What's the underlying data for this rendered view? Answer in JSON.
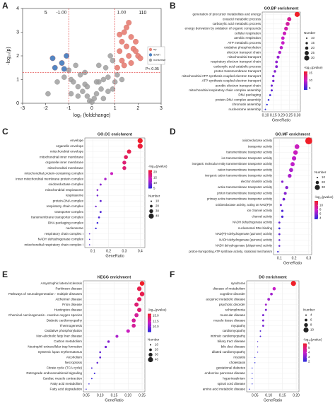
{
  "chart_data": [
    {
      "type": "volcano",
      "panel_label": "A",
      "x_label": "log₂ (foldchange)",
      "y_label": "-log₁₀(p)",
      "xlim": [
        -3,
        3
      ],
      "xticks": [
        -3,
        -2,
        -1,
        0,
        1,
        2,
        3
      ],
      "ylim": [
        0,
        4
      ],
      "yticks": [
        0,
        1,
        2,
        3,
        4
      ],
      "fc_lines": [
        {
          "value": -1,
          "label": "-1.00"
        },
        {
          "value": 1,
          "label": "1.00"
        }
      ],
      "p_line": {
        "value": 1.3,
        "label": "P< 0.05"
      },
      "counts": {
        "down": 5,
        "up": 110
      },
      "series": [
        {
          "name": "up",
          "color": "#e8847a",
          "x": [
            1.1,
            1.2,
            1.3,
            1.4,
            1.5,
            1.6,
            1.7,
            1.8,
            1.9,
            2.0,
            2.1,
            1.3,
            1.5,
            1.7,
            1.2,
            1.9,
            1.4,
            1.6
          ],
          "values": [
            1.5,
            2.2,
            2.6,
            3.0,
            2.4,
            3.4,
            2.8,
            2.3,
            2.6,
            2.0,
            1.9,
            1.8,
            3.2,
            1.7,
            2.9,
            2.2,
            1.6,
            2.0
          ]
        },
        {
          "name": "down",
          "color": "#4a7fc0",
          "x": [
            -1.7,
            -1.6,
            -1.3,
            -1.2,
            -1.1
          ],
          "values": [
            1.9,
            1.5,
            1.7,
            1.45,
            2.0
          ]
        },
        {
          "name": "nonsense",
          "color": "#a0a0a0",
          "x": [
            -1.9,
            -1.5,
            -1.2,
            -1.0,
            -0.9,
            -0.8,
            -0.7,
            -0.6,
            -0.5,
            -0.4,
            -0.3,
            -0.2,
            -0.1,
            0,
            0.1,
            0.2,
            0.3,
            0.4,
            0.5,
            0.6,
            0.7,
            0.8,
            0.9,
            1.0,
            1.1,
            1.3,
            -0.6,
            0.5,
            0.3,
            -0.3,
            0.7,
            -0.9,
            0.9,
            0.2,
            -0.2
          ],
          "values": [
            0.4,
            0.9,
            1.1,
            1.4,
            1.0,
            0.9,
            1.6,
            0.7,
            1.2,
            0.5,
            0.8,
            0.3,
            0.1,
            0.05,
            0.2,
            0.4,
            0.9,
            0.6,
            1.0,
            1.5,
            1.1,
            2.0,
            1.8,
            0.9,
            1.2,
            1.0,
            0.3,
            0.2,
            1.6,
            1.3,
            0.5,
            0.4,
            0.6,
            0.9,
            0.7
          ]
        }
      ]
    },
    {
      "type": "dot",
      "panel_label": "B",
      "title": "GO.BP enrichment",
      "x_label": "GeneRatio",
      "size_title": "Number",
      "color_title": "-log₁₀(pvalue)",
      "categories": [
        "generation of precursor metabolites and energy",
        "oxoacid metabolic process",
        "carboxylic acid metabolic process",
        "energy derivation by oxidation of organic compounds",
        "cellular respiration",
        "aerobic respiration",
        "ATP metabolic process",
        "oxidative phosphorylation",
        "electron transport chain",
        "mitochondrial transport",
        "respiratory electron transport chain",
        "carboxylic acid catabolic process",
        "proton transmembrane transport",
        "mitochondrial ATP synthesis coupled electron transport",
        "ATP synthesis coupled electron transport",
        "aerobic electron transport chain",
        "mitochondrial respiratory chain complex assembly",
        "DNA packaging",
        "protein-DNA complex assembly",
        "chromatin assembly",
        "nucleosome assembly"
      ],
      "values": [
        0.3,
        0.25,
        0.24,
        0.23,
        0.22,
        0.21,
        0.21,
        0.2,
        0.19,
        0.18,
        0.17,
        0.17,
        0.16,
        0.15,
        0.15,
        0.14,
        0.14,
        0.13,
        0.12,
        0.11,
        0.1
      ],
      "counts": [
        30,
        25,
        24,
        23,
        22,
        21,
        21,
        20,
        19,
        18,
        17,
        17,
        16,
        15,
        15,
        14,
        14,
        13,
        12,
        11,
        10
      ],
      "logp": [
        16,
        12,
        11.5,
        11,
        10.5,
        10,
        10,
        9.5,
        9,
        8,
        8,
        7.5,
        7.5,
        7,
        7,
        6.5,
        6,
        5,
        4.5,
        4,
        4
      ],
      "xlim": [
        0.08,
        0.32
      ],
      "xticks": [
        {
          "value": 0.1,
          "label": "0.10"
        },
        0.15,
        {
          "value": 0.2,
          "label": "0.20"
        },
        0.25,
        {
          "value": 0.3,
          "label": "0.30"
        }
      ],
      "size_ticks": [
        10,
        15,
        20,
        25,
        30
      ],
      "color_range": [
        4,
        16
      ],
      "color_ticks": [
        5,
        10,
        15
      ]
    },
    {
      "type": "dot",
      "panel_label": "C",
      "title": "GO.CC enrichment",
      "x_label": "GeneRatio",
      "size_title": "Number",
      "color_title": "-log₁₀(pvalue)",
      "categories": [
        "envelope",
        "organelle envelope",
        "mitochondrial envelope",
        "mitochondrial inner membrane",
        "organelle inner membrane",
        "mitochondrial membrane",
        "mitochondrial protein-containing complex",
        "inner mitochondrial membrane protein complex",
        "oxidoreductase complex",
        "mitochondrial respirasome",
        "respirasome",
        "protein-DNA complex",
        "respiratory chain complex",
        "transporter complex",
        "transmembrane transporter complex",
        "DNA packaging complex",
        "nucleosome",
        "respiratory chain complex I",
        "NADH dehydrogenase complex",
        "mitochondrial respiratory chain complex I"
      ],
      "values": [
        0.4,
        0.4,
        0.33,
        0.31,
        0.3,
        0.3,
        0.22,
        0.18,
        0.15,
        0.13,
        0.13,
        0.15,
        0.12,
        0.15,
        0.14,
        0.13,
        0.12,
        0.08,
        0.08,
        0.08
      ],
      "counts": [
        40,
        40,
        33,
        31,
        30,
        30,
        22,
        18,
        15,
        13,
        13,
        15,
        12,
        15,
        14,
        13,
        12,
        8,
        8,
        8
      ],
      "logp": [
        22,
        21,
        20,
        19,
        18,
        18,
        14,
        12,
        10,
        10,
        9,
        8,
        9,
        7,
        7,
        6,
        6,
        8,
        7,
        7
      ],
      "xlim": [
        0.05,
        0.43
      ],
      "xticks": [
        0.1,
        0.2,
        0.3,
        0.4
      ],
      "size_ticks": [
        10,
        20,
        30,
        40
      ],
      "color_range": [
        5,
        22
      ],
      "color_ticks": [
        5,
        10,
        15,
        20
      ]
    },
    {
      "type": "dot",
      "panel_label": "D",
      "title": "GO.MF enrichment",
      "x_label": "GeneRatio",
      "size_title": "Number",
      "color_title": "-log₁₀(pvalue)",
      "categories": [
        "oxidoreductase activity",
        "transporter activity",
        "transmembrane transporter activity",
        "ion transmembrane transporter activity",
        "inorganic molecular entity transmembrane transporter activity",
        "cation transmembrane transporter activity",
        "inorganic cation transmembrane transporter activity",
        "electron transfer activity",
        "active transmembrane transporter activity",
        "proton transmembrane transporter activity",
        "primary active transmembrane transporter activity",
        "oxidoreductase activity, acting on NAD(P)H",
        "ion channel activity",
        "channel activity",
        "NADH dehydrogenase activity",
        "nucleosomal DNA binding",
        "NAD(P)H dehydrogenase (quinone) activity",
        "NADH dehydrogenase (quinone) activity",
        "NADH dehydrogenase (ubiquinone) activity",
        "proton-transporting ATP synthase activity, rotational mechanism"
      ],
      "values": [
        0.3,
        0.22,
        0.21,
        0.2,
        0.19,
        0.18,
        0.17,
        0.12,
        0.15,
        0.14,
        0.13,
        0.11,
        0.12,
        0.12,
        0.1,
        0.1,
        0.1,
        0.1,
        0.1,
        0.09
      ],
      "counts": [
        40,
        28,
        27,
        26,
        25,
        24,
        23,
        15,
        19,
        18,
        17,
        14,
        15,
        15,
        13,
        13,
        13,
        12,
        12,
        11
      ],
      "logp": [
        12,
        8,
        8,
        7.5,
        7.5,
        7,
        7,
        6,
        6,
        6,
        5.5,
        5.5,
        4.5,
        4.5,
        5,
        4,
        5,
        5,
        5,
        4
      ],
      "xlim": [
        0.06,
        0.32
      ],
      "xticks": [
        0.1,
        0.2,
        0.3
      ],
      "size_ticks": [
        10,
        20,
        30
      ],
      "color_range": [
        3.5,
        12
      ],
      "color_ticks": [
        4,
        6,
        8,
        10
      ]
    },
    {
      "type": "dot",
      "panel_label": "E",
      "title": "KEGG enrichment",
      "x_label": "GeneRatio",
      "size_title": "Number",
      "color_title": "-log₁₀(pvalue)",
      "categories": [
        "Amyotrophic lateral sclerosis",
        "Parkinson disease",
        "Pathways of neurodegeneration - multiple diseases",
        "Alzheimer disease",
        "Prion disease",
        "Huntington disease",
        "Chemical carcinogenesis - reactive oxygen species",
        "Diabetic cardiomyopathy",
        "Thermogenesis",
        "Oxidative phosphorylation",
        "Non-alcoholic fatty liver disease",
        "Carbon metabolism",
        "Neutrophil extracellular trap formation",
        "Systemic lupus erythematosus",
        "Alcoholism",
        "Necroptosis",
        "Citrate cycle (TCA cycle)",
        "Retrograde endocannabinoid signaling",
        "Cardiac muscle contraction",
        "Fatty acid metabolism",
        "Fatty acid degradation"
      ],
      "values": [
        0.25,
        0.24,
        0.25,
        0.24,
        0.23,
        0.24,
        0.23,
        0.22,
        0.22,
        0.2,
        0.16,
        0.13,
        0.12,
        0.1,
        0.1,
        0.09,
        0.07,
        0.08,
        0.07,
        0.06,
        0.05
      ],
      "counts": [
        36,
        35,
        36,
        34,
        33,
        34,
        32,
        31,
        31,
        28,
        22,
        18,
        17,
        14,
        14,
        13,
        10,
        11,
        10,
        8,
        7
      ],
      "logp": [
        16,
        15,
        15,
        14.5,
        14,
        14,
        13,
        13,
        13,
        12,
        11,
        10,
        9.5,
        9,
        9,
        9,
        8.5,
        8,
        8,
        8,
        8
      ],
      "xlim": [
        0.04,
        0.26
      ],
      "xticks": [
        0.05,
        {
          "value": 0.1,
          "label": "0.10"
        },
        0.15,
        {
          "value": 0.2,
          "label": "0.20"
        },
        0.25
      ],
      "size_ticks": [
        10,
        20,
        30,
        40
      ],
      "color_range": [
        7.5,
        16
      ],
      "color_ticks": [
        {
          "value": 10,
          "label": "10.0"
        },
        12.5,
        {
          "value": 15,
          "label": "15.0"
        }
      ]
    },
    {
      "type": "dot",
      "panel_label": "F",
      "title": "DO enrichment",
      "x_label": "GeneRatio",
      "size_title": "Number",
      "color_title": "-log₁₀(pvalue)",
      "categories": [
        "syndrome",
        "disease of metabolism",
        "cognitive disorder",
        "acquired metabolic disease",
        "psychotic disorder",
        "schizophrenia",
        "muscular disease",
        "muscle tissue disease",
        "myopathy",
        "cardiomyopathy",
        "intrinsic cardiomyopathy",
        "biliary tract disease",
        "bile duct disease",
        "dilated cardiomyopathy",
        "myositis",
        "cholestasis",
        "gestational diabetes",
        "endocrine pancreas disease",
        "hyperinsulinism",
        "spinal cord disease",
        "amino acid metabolic disease"
      ],
      "values": [
        0.19,
        0.12,
        0.11,
        0.1,
        0.09,
        0.09,
        0.08,
        0.08,
        0.08,
        0.07,
        0.07,
        0.06,
        0.06,
        0.06,
        0.05,
        0.05,
        0.04,
        0.04,
        0.04,
        0.04,
        0.03
      ],
      "counts": [
        10,
        7,
        6,
        6,
        5,
        5,
        5,
        5,
        5,
        4,
        4,
        3,
        3,
        3,
        3,
        3,
        3,
        3,
        3,
        3,
        2
      ],
      "logp": [
        6,
        4,
        3.5,
        3.5,
        3.5,
        3,
        3,
        3,
        3,
        2.5,
        2.5,
        2.5,
        2.5,
        2.5,
        2,
        2,
        2,
        2,
        2,
        2,
        2
      ],
      "xlim": [
        0.02,
        0.21
      ],
      "xticks": [
        0.05,
        {
          "value": 0.1,
          "label": "0.10"
        },
        0.15,
        {
          "value": 0.2,
          "label": "0.20"
        }
      ],
      "size_ticks": [
        4,
        6,
        8,
        10
      ],
      "color_range": [
        2,
        6
      ],
      "color_ticks": [
        2,
        3,
        4,
        5,
        6
      ]
    }
  ]
}
